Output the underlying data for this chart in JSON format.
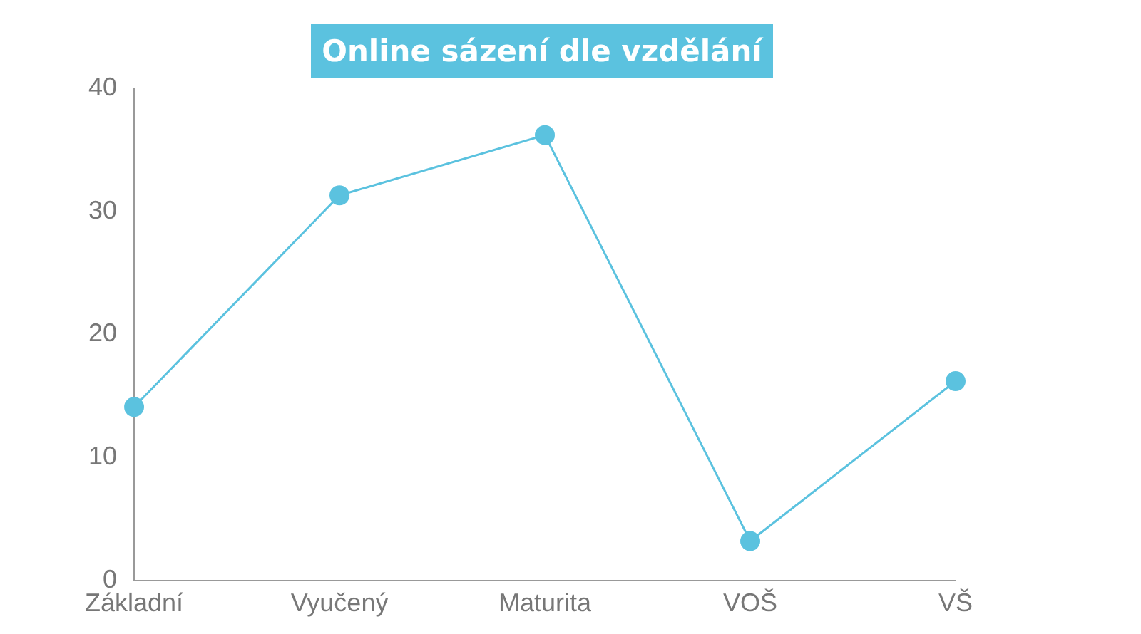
{
  "chart_data": {
    "type": "line",
    "title": "Online sázení dle vzdělání",
    "categories": [
      "Základní",
      "Vyučený",
      "Maturita",
      "VOŠ",
      "VŠ"
    ],
    "values": [
      14.1,
      31.3,
      36.2,
      3.2,
      16.2
    ],
    "color": "#5bc2df",
    "ylim": [
      0,
      40
    ],
    "yticks": [
      0,
      10,
      20,
      30,
      40
    ],
    "grid": false,
    "marker": "circle",
    "line_style": "solid",
    "legend": false
  }
}
